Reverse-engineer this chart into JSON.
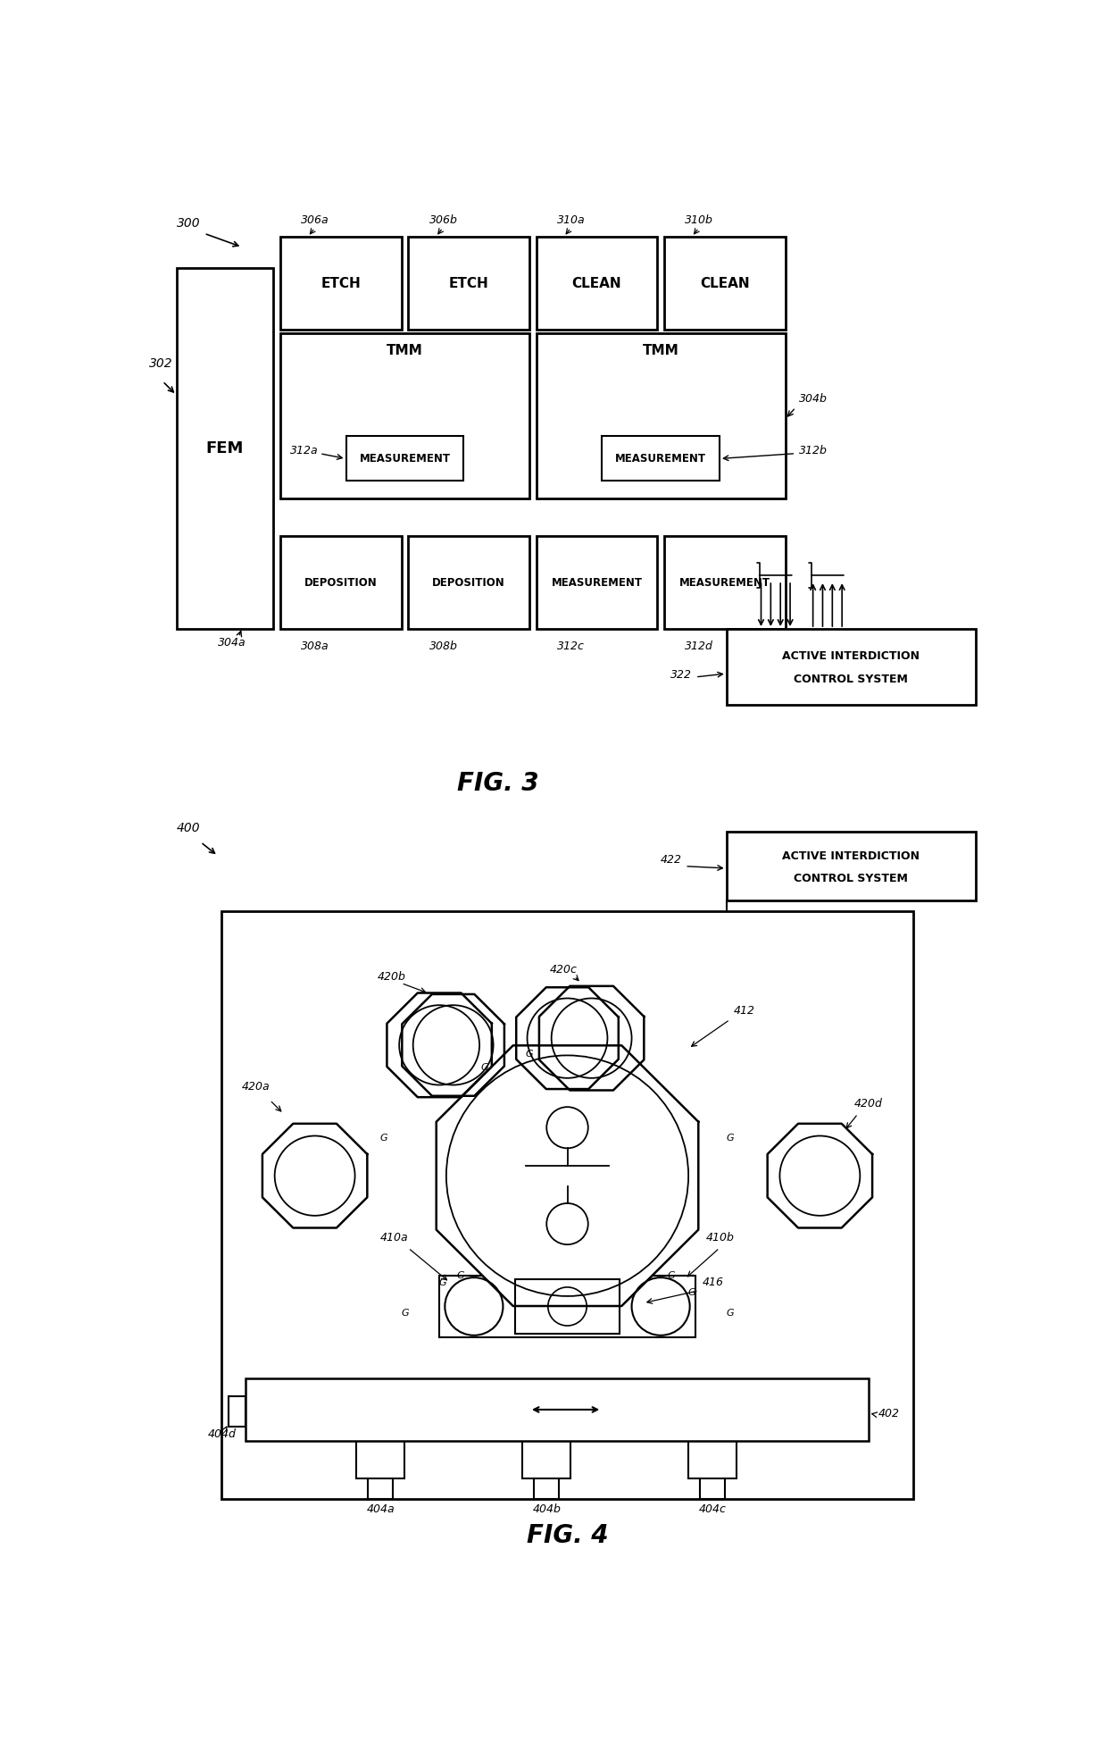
{
  "fig_width": 12.4,
  "fig_height": 19.59,
  "bg_color": "#ffffff",
  "line_color": "#000000",
  "fig3_title": "FIG. 3",
  "fig4_title": "FIG. 4",
  "labels_3": {
    "300": "300",
    "302": "302",
    "304a": "304a",
    "304b": "304b",
    "306a": "306a",
    "306b": "306b",
    "310a": "310a",
    "310b": "310b",
    "308a": "308a",
    "308b": "308b",
    "312a": "312a",
    "312b": "312b",
    "312c": "312c",
    "312d": "312d",
    "322": "322"
  },
  "labels_4": {
    "400": "400",
    "402": "402",
    "404a": "404a",
    "404b": "404b",
    "404c": "404c",
    "404d": "404d",
    "410a": "410a",
    "410b": "410b",
    "412": "412",
    "416": "416",
    "420a": "420a",
    "420b": "420b",
    "420c": "420c",
    "420d": "420d",
    "422": "422"
  }
}
